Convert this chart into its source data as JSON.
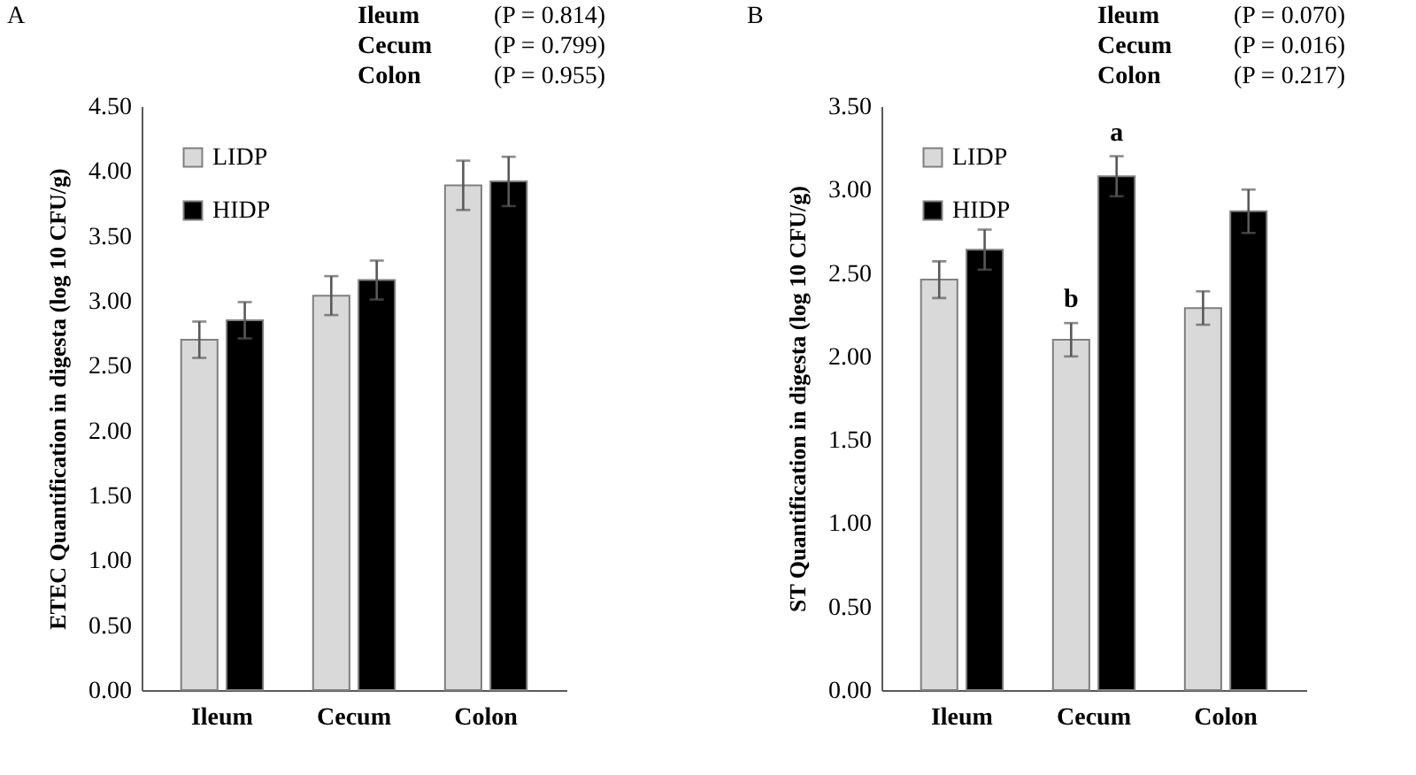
{
  "chart_data": [
    {
      "type": "bar",
      "title": "A",
      "ylabel": "ETEC Quantification in digesta (log 10 CFU/g)",
      "categories": [
        "Ileum",
        "Cecum",
        "Colon"
      ],
      "series": [
        {
          "name": "LIDP",
          "color": "#d9d9d9",
          "values": [
            2.7,
            3.04,
            3.89
          ],
          "errors": [
            0.14,
            0.15,
            0.19
          ]
        },
        {
          "name": "HIDP",
          "color": "#000000",
          "values": [
            2.85,
            3.16,
            3.92
          ],
          "errors": [
            0.14,
            0.15,
            0.19
          ]
        }
      ],
      "ylim": [
        0,
        4.5
      ],
      "yticks": [
        {
          "value": 0,
          "label": "0.00"
        },
        {
          "value": 0.5,
          "label": "0.50"
        },
        {
          "value": 1,
          "label": "1.00"
        },
        {
          "value": 1.5,
          "label": "1.50"
        },
        {
          "value": 2,
          "label": "2.00"
        },
        {
          "value": 2.5,
          "label": "2.50"
        },
        {
          "value": 3,
          "label": "3.00"
        },
        {
          "value": 3.5,
          "label": "3.50"
        },
        {
          "value": 4,
          "label": "4.00"
        },
        {
          "value": 4.5,
          "label": "4.50"
        }
      ],
      "grid": false,
      "legend": "top left",
      "annotations": [
        "Ileum (P = 0.814)",
        "Cecum (P = 0.799)",
        "Colon (P = 0.955)"
      ]
    },
    {
      "type": "bar",
      "title": "B",
      "ylabel": "ST Quantification in digesta (log 10 CFU/g)",
      "categories": [
        "Ileum",
        "Cecum",
        "Colon"
      ],
      "series": [
        {
          "name": "LIDP",
          "color": "#d9d9d9",
          "values": [
            2.46,
            2.1,
            2.29
          ],
          "errors": [
            0.11,
            0.1,
            0.1
          ]
        },
        {
          "name": "HIDP",
          "color": "#000000",
          "values": [
            2.64,
            3.08,
            2.87
          ],
          "errors": [
            0.12,
            0.12,
            0.13
          ]
        }
      ],
      "ylim": [
        0,
        3.5
      ],
      "yticks": [
        {
          "value": 0,
          "label": "0.00"
        },
        {
          "value": 0.5,
          "label": "0.50"
        },
        {
          "value": 1,
          "label": "1.00"
        },
        {
          "value": 1.5,
          "label": "1.50"
        },
        {
          "value": 2,
          "label": "2.00"
        },
        {
          "value": 2.5,
          "label": "2.50"
        },
        {
          "value": 3,
          "label": "3.00"
        },
        {
          "value": 3.5,
          "label": "3.50"
        }
      ],
      "grid": false,
      "legend": "top left",
      "annotations": [
        "Ileum (P = 0.070)",
        "Cecum (P = 0.016)",
        "Colon (P = 0.217)",
        {
          "text": "a",
          "x": "Cecum",
          "y": 3.08
        },
        {
          "text": "b",
          "x": "Cecum",
          "y": 2.1
        }
      ]
    }
  ]
}
